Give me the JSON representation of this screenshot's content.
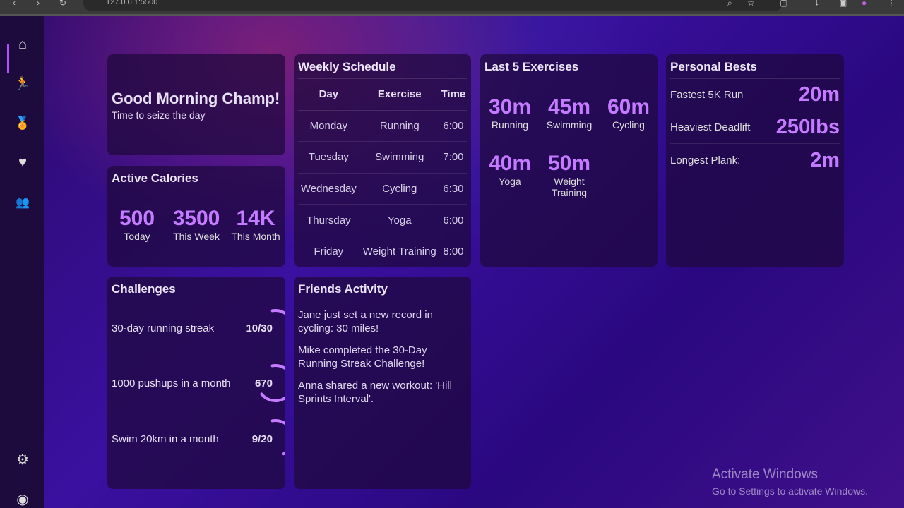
{
  "browser": {
    "url": "127.0.0.1:5500"
  },
  "sidebar": {
    "items": [
      {
        "icon": "home-icon",
        "glyph": "⌂"
      },
      {
        "icon": "running-icon",
        "glyph": "🏃"
      },
      {
        "icon": "medal-icon",
        "glyph": "🏅"
      },
      {
        "icon": "heart-icon",
        "glyph": "♥"
      },
      {
        "icon": "users-icon",
        "glyph": "👥"
      }
    ],
    "bottom": [
      {
        "icon": "gear-icon",
        "glyph": "⚙"
      },
      {
        "icon": "user-circle-icon",
        "glyph": "◉"
      }
    ]
  },
  "greeting": {
    "title": "Good Morning Champ!",
    "subtitle": "Time to seize the day"
  },
  "calories": {
    "title": "Active Calories",
    "stats": [
      {
        "value": "500",
        "label": "Today"
      },
      {
        "value": "3500",
        "label": "This Week"
      },
      {
        "value": "14K",
        "label": "This Month"
      }
    ]
  },
  "schedule": {
    "title": "Weekly Schedule",
    "columns": [
      "Day",
      "Exercise",
      "Time"
    ],
    "rows": [
      [
        "Monday",
        "Running",
        "6:00"
      ],
      [
        "Tuesday",
        "Swimming",
        "7:00"
      ],
      [
        "Wednesday",
        "Cycling",
        "6:30"
      ],
      [
        "Thursday",
        "Yoga",
        "6:00"
      ],
      [
        "Friday",
        "Weight Training",
        "8:00"
      ]
    ]
  },
  "exercises": {
    "title": "Last 5 Exercises",
    "items": [
      {
        "value": "30m",
        "label": "Running"
      },
      {
        "value": "45m",
        "label": "Swimming"
      },
      {
        "value": "60m",
        "label": "Cycling"
      },
      {
        "value": "40m",
        "label": "Yoga"
      },
      {
        "value": "50m",
        "label": "Weight Training"
      }
    ]
  },
  "bests": {
    "title": "Personal Bests",
    "items": [
      {
        "label": "Fastest 5K Run",
        "value": "20m"
      },
      {
        "label": "Heaviest Deadlift",
        "value": "250lbs"
      },
      {
        "label": "Longest Plank:",
        "value": "2m"
      }
    ]
  },
  "challenges": {
    "title": "Challenges",
    "items": [
      {
        "label": "30-day running streak",
        "value": "10/30",
        "progress": 0.33
      },
      {
        "label": "1000 pushups in a month",
        "value": "670",
        "progress": 0.67
      },
      {
        "label": "Swim 20km in a month",
        "value": "9/20",
        "progress": 0.45
      }
    ]
  },
  "friends": {
    "title": "Friends Activity",
    "items": [
      "Jane just set a new record in cycling: 30 miles!",
      "Mike completed the 30-Day Running Streak Challenge!",
      "Anna shared a new workout: 'Hill Sprints Interval'."
    ]
  },
  "watermark": {
    "title": "Activate Windows",
    "subtitle": "Go to Settings to activate Windows."
  },
  "colors": {
    "accent": "#c57bff",
    "sidebar": "#1c0b3c"
  }
}
